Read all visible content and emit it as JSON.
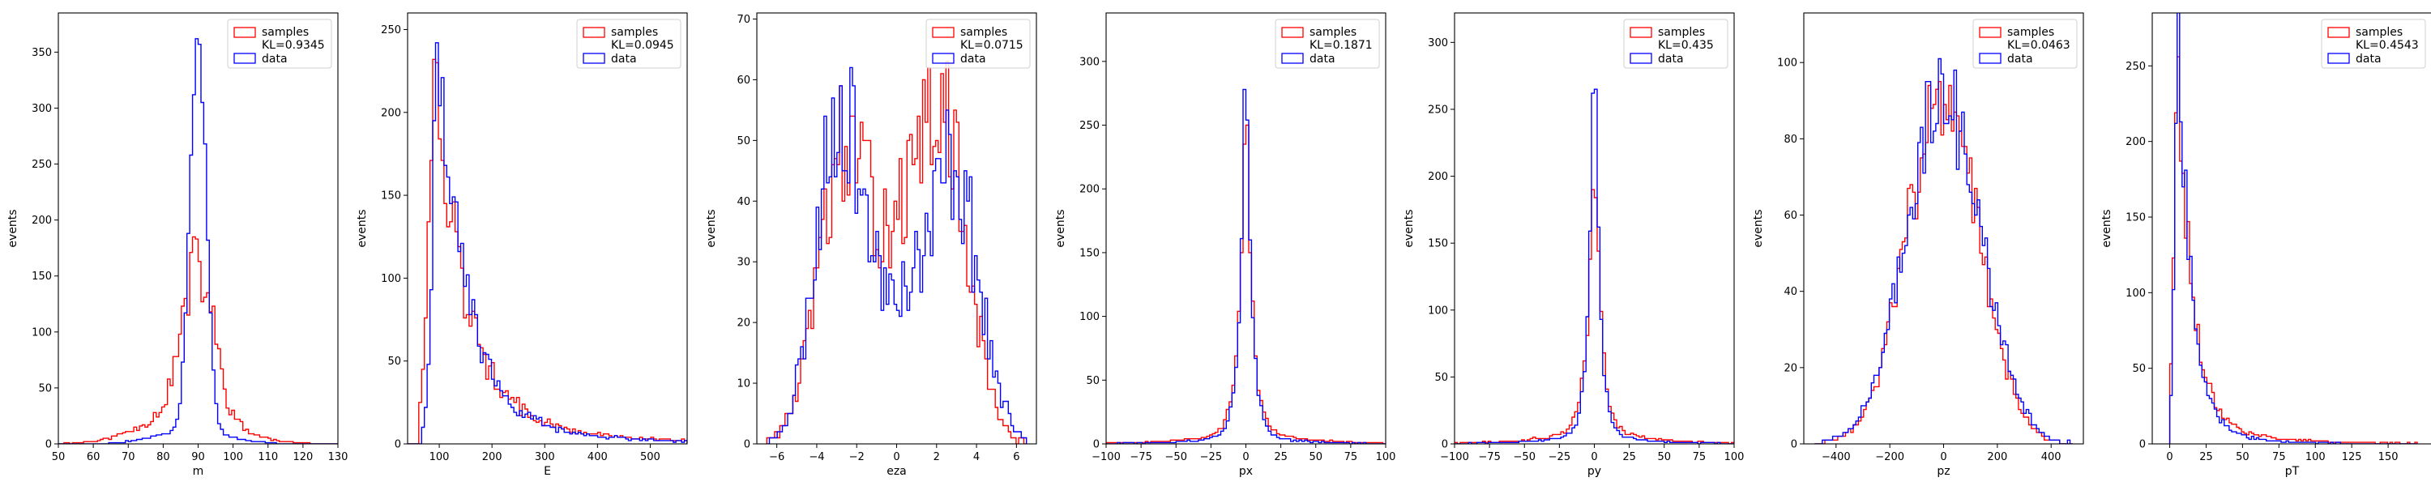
{
  "colors": {
    "samples": "#ff0000",
    "data": "#0000ff"
  },
  "legend": {
    "placement": "top-right"
  },
  "chart_data": [
    {
      "type": "histogram",
      "xlabel": "m",
      "ylabel": "events",
      "xlim": [
        50,
        130
      ],
      "ylim": [
        0,
        385
      ],
      "xticks": [
        "50",
        "60",
        "70",
        "80",
        "90",
        "100",
        "110",
        "120",
        "130"
      ],
      "yticks": [
        "0",
        "50",
        "100",
        "150",
        "200",
        "250",
        "300",
        "350"
      ],
      "legend": {
        "samples": "samples",
        "kl": "KL=0.9345",
        "data": "data"
      },
      "samples_curve": {
        "shape": "gauss",
        "params": [
          {
            "a": 128,
            "c": 90,
            "w": 4.5
          },
          {
            "a": 30,
            "c": 87,
            "w": 12
          }
        ],
        "noise": 0.22,
        "xmin": 50,
        "xmax": 130,
        "nbins": 100,
        "seed": 11
      },
      "data_curve": {
        "shape": "gauss",
        "params": [
          {
            "a": 355,
            "c": 90,
            "w": 2.3
          },
          {
            "a": 12,
            "c": 88,
            "w": 10
          }
        ],
        "noise": 0.06,
        "xmin": 50,
        "xmax": 130,
        "nbins": 100,
        "seed": 21
      }
    },
    {
      "type": "histogram",
      "xlabel": "E",
      "ylabel": "events",
      "xlim": [
        40,
        570
      ],
      "ylim": [
        0,
        260
      ],
      "xticks": [
        "100",
        "200",
        "300",
        "400",
        "500"
      ],
      "yticks": [
        "0",
        "50",
        "100",
        "150",
        "200",
        "250"
      ],
      "legend": {
        "samples": "samples",
        "kl": "KL=0.0945",
        "data": "data"
      },
      "samples_curve": {
        "shape": "landau",
        "params": {
          "a": 210,
          "peak": 95,
          "rise": 15,
          "decay": 58,
          "tail": 0.09,
          "tailDecay": 220,
          "start": 60
        },
        "noise": 0.18,
        "xmin": 40,
        "xmax": 570,
        "nbins": 100,
        "seed": 12
      },
      "data_curve": {
        "shape": "landau",
        "params": {
          "a": 235,
          "peak": 100,
          "rise": 12,
          "decay": 52,
          "tail": 0.09,
          "tailDecay": 180,
          "start": 65
        },
        "noise": 0.18,
        "xmin": 40,
        "xmax": 570,
        "nbins": 100,
        "seed": 22
      }
    },
    {
      "type": "histogram",
      "xlabel": "eza",
      "ylabel": "events",
      "xlim": [
        -7,
        7
      ],
      "ylim": [
        0,
        71
      ],
      "xticks": [
        "-6",
        "-4",
        "-2",
        "0",
        "2",
        "4",
        "6"
      ],
      "yticks": [
        "0",
        "10",
        "20",
        "30",
        "40",
        "50",
        "60",
        "70"
      ],
      "legend": {
        "samples": "samples",
        "kl": "KL=0.0715",
        "data": "data"
      },
      "samples_curve": {
        "shape": "gauss",
        "params": [
          {
            "a": 48,
            "c": -2.6,
            "w": 1.3
          },
          {
            "a": 52,
            "c": 2.3,
            "w": 1.3
          },
          {
            "a": 22,
            "c": 0,
            "w": 1.0
          }
        ],
        "noise": 0.22,
        "xmin": -6.5,
        "xmax": 6.5,
        "nbins": 100,
        "seed": 13
      },
      "data_curve": {
        "shape": "gauss",
        "params": [
          {
            "a": 56,
            "c": -2.8,
            "w": 1.2
          },
          {
            "a": 46,
            "c": 2.8,
            "w": 1.3
          },
          {
            "a": 18,
            "c": 0,
            "w": 1.0
          }
        ],
        "noise": 0.22,
        "xmin": -6.5,
        "xmax": 6.5,
        "nbins": 100,
        "seed": 23
      }
    },
    {
      "type": "histogram",
      "xlabel": "px",
      "ylabel": "events",
      "xlim": [
        -100,
        100
      ],
      "ylim": [
        0,
        338
      ],
      "xticks": [
        "-100",
        "-75",
        "-50",
        "-25",
        "0",
        "25",
        "50",
        "75",
        "100"
      ],
      "yticks": [
        "0",
        "50",
        "100",
        "150",
        "200",
        "250",
        "300"
      ],
      "legend": {
        "samples": "samples",
        "kl": "KL=0.1871",
        "data": "data"
      },
      "samples_curve": {
        "shape": "laplace",
        "params": {
          "a": 285,
          "c": 0,
          "s": 4.4,
          "tail": 14,
          "tailS": 32
        },
        "noise": 0.12,
        "xmin": -100,
        "xmax": 100,
        "nbins": 100,
        "seed": 14
      },
      "data_curve": {
        "shape": "laplace",
        "params": {
          "a": 318,
          "c": 0,
          "s": 4.0,
          "tail": 10,
          "tailS": 28
        },
        "noise": 0.08,
        "xmin": -100,
        "xmax": 100,
        "nbins": 100,
        "seed": 24
      }
    },
    {
      "type": "histogram",
      "xlabel": "py",
      "ylabel": "events",
      "xlim": [
        -100,
        100
      ],
      "ylim": [
        0,
        322
      ],
      "xticks": [
        "-100",
        "-75",
        "-50",
        "-25",
        "0",
        "25",
        "50",
        "75",
        "100"
      ],
      "yticks": [
        "0",
        "50",
        "100",
        "150",
        "200",
        "250",
        "300"
      ],
      "legend": {
        "samples": "samples",
        "kl": "KL=0.435",
        "data": "data"
      },
      "samples_curve": {
        "shape": "laplace",
        "params": {
          "a": 235,
          "c": 0,
          "s": 4.6,
          "tail": 14,
          "tailS": 32
        },
        "noise": 0.12,
        "xmin": -100,
        "xmax": 100,
        "nbins": 100,
        "seed": 15
      },
      "data_curve": {
        "shape": "laplace",
        "params": {
          "a": 310,
          "c": 0,
          "s": 3.8,
          "tail": 10,
          "tailS": 28
        },
        "noise": 0.08,
        "xmin": -100,
        "xmax": 100,
        "nbins": 100,
        "seed": 25
      }
    },
    {
      "type": "histogram",
      "xlabel": "pz",
      "ylabel": "events",
      "xlim": [
        -520,
        520
      ],
      "ylim": [
        0,
        113
      ],
      "xticks": [
        "-400",
        "-200",
        "0",
        "200",
        "400"
      ],
      "yticks": [
        "0",
        "20",
        "40",
        "60",
        "80",
        "100"
      ],
      "legend": {
        "samples": "samples",
        "kl": "KL=0.0463",
        "data": "data"
      },
      "samples_curve": {
        "shape": "gauss",
        "params": [
          {
            "a": 92,
            "c": 0,
            "w": 135
          }
        ],
        "noise": 0.14,
        "xmin": -480,
        "xmax": 480,
        "nbins": 100,
        "seed": 16
      },
      "data_curve": {
        "shape": "gauss",
        "params": [
          {
            "a": 92,
            "c": 0,
            "w": 140
          }
        ],
        "noise": 0.14,
        "xmin": -480,
        "xmax": 480,
        "nbins": 100,
        "seed": 26
      }
    },
    {
      "type": "histogram",
      "xlabel": "pT",
      "ylabel": "events",
      "xlim": [
        -12,
        180
      ],
      "ylim": [
        0,
        285
      ],
      "xticks": [
        "0",
        "25",
        "50",
        "75",
        "100",
        "125",
        "150"
      ],
      "yticks": [
        "0",
        "50",
        "100",
        "150",
        "200",
        "250"
      ],
      "legend": {
        "samples": "samples",
        "kl": "KL=0.4543",
        "data": "data"
      },
      "samples_curve": {
        "shape": "landau",
        "params": {
          "a": 245,
          "peak": 6,
          "rise": 3,
          "decay": 10,
          "tail": 0.08,
          "tailDecay": 40,
          "start": 0
        },
        "noise": 0.16,
        "xmin": 0,
        "xmax": 170,
        "nbins": 100,
        "seed": 17
      },
      "data_curve": {
        "shape": "landau",
        "params": {
          "a": 275,
          "peak": 6,
          "rise": 2.5,
          "decay": 9,
          "tail": 0.06,
          "tailDecay": 30,
          "start": 0
        },
        "noise": 0.12,
        "xmin": 0,
        "xmax": 170,
        "nbins": 100,
        "seed": 27
      }
    }
  ]
}
